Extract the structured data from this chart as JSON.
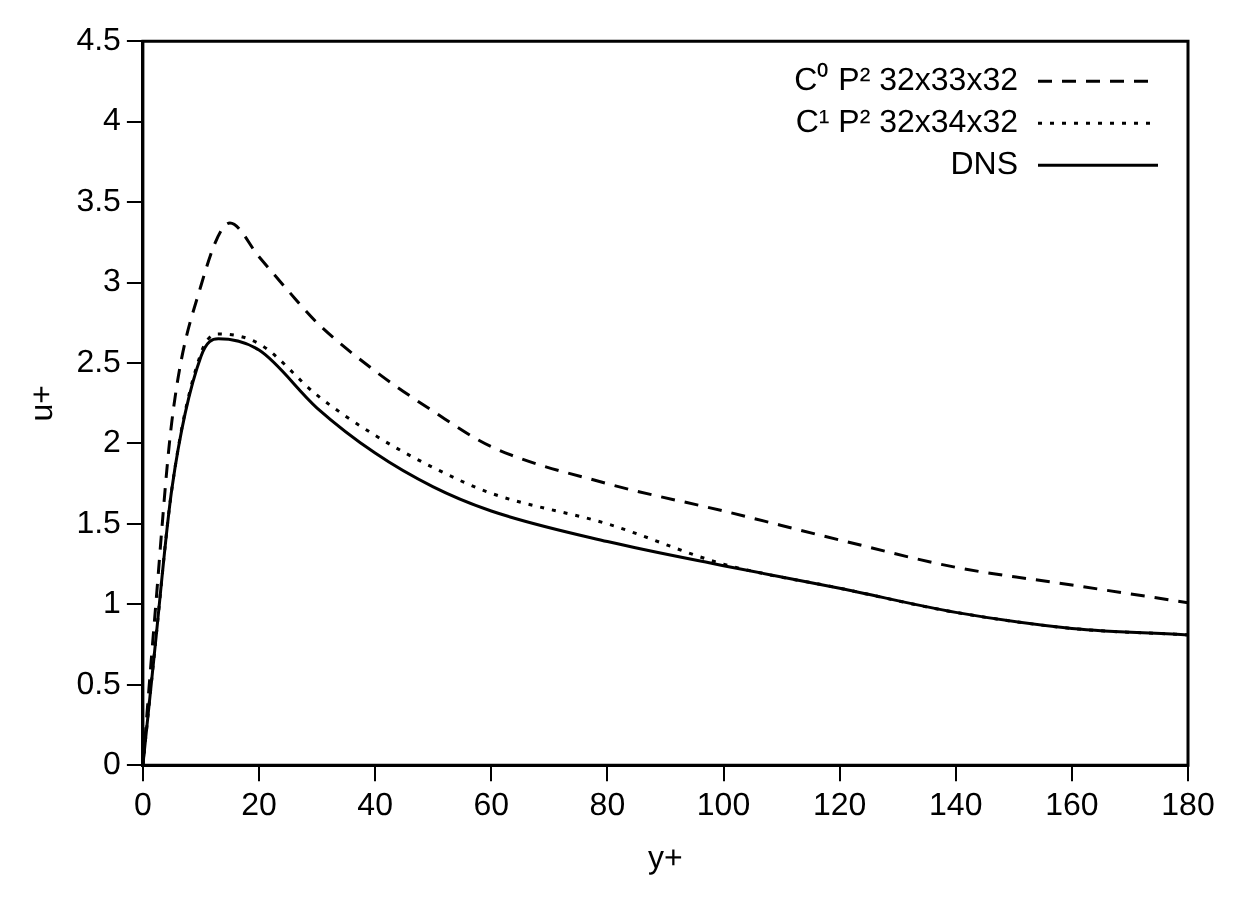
{
  "chart_data": {
    "type": "line",
    "xlabel": "y+",
    "ylabel": "u+",
    "xlim": [
      0,
      180
    ],
    "xticks": [
      0,
      20,
      40,
      60,
      80,
      100,
      120,
      140,
      160,
      180
    ],
    "ylim": [
      0,
      4.5
    ],
    "yticks": [
      0,
      0.5,
      1,
      1.5,
      2,
      2.5,
      3,
      3.5,
      4,
      4.5
    ],
    "grid": false,
    "legend": "top right",
    "marker": "none",
    "series": [
      {
        "name": "C⁰ P² 32x33x32",
        "color": "#000000",
        "line_style": "dashed",
        "x": [
          0,
          2,
          5,
          10,
          15,
          20,
          25,
          30,
          40,
          50,
          60,
          80,
          100,
          120,
          140,
          160,
          180
        ],
        "values": [
          0,
          0.9,
          2.14,
          2.98,
          3.37,
          3.16,
          2.95,
          2.75,
          2.45,
          2.2,
          1.98,
          1.75,
          1.58,
          1.4,
          1.23,
          1.12,
          1.01
        ]
      },
      {
        "name": "C¹ P² 32x34x32",
        "color": "#000000",
        "line_style": "dotted",
        "x": [
          0,
          2,
          5,
          10,
          13,
          20,
          30,
          40,
          50,
          60,
          80,
          100,
          120,
          140,
          160,
          180
        ],
        "values": [
          0,
          0.7,
          1.72,
          2.56,
          2.68,
          2.62,
          2.3,
          2.05,
          1.85,
          1.69,
          1.5,
          1.25,
          1.1,
          0.95,
          0.85,
          0.81
        ]
      },
      {
        "name": "DNS",
        "color": "#000000",
        "line_style": "solid",
        "x": [
          0,
          2,
          5,
          10,
          13,
          20,
          30,
          40,
          50,
          60,
          80,
          100,
          120,
          140,
          160,
          180
        ],
        "values": [
          0,
          0.7,
          1.72,
          2.54,
          2.65,
          2.58,
          2.22,
          1.94,
          1.73,
          1.58,
          1.39,
          1.24,
          1.1,
          0.95,
          0.85,
          0.81
        ]
      }
    ]
  }
}
